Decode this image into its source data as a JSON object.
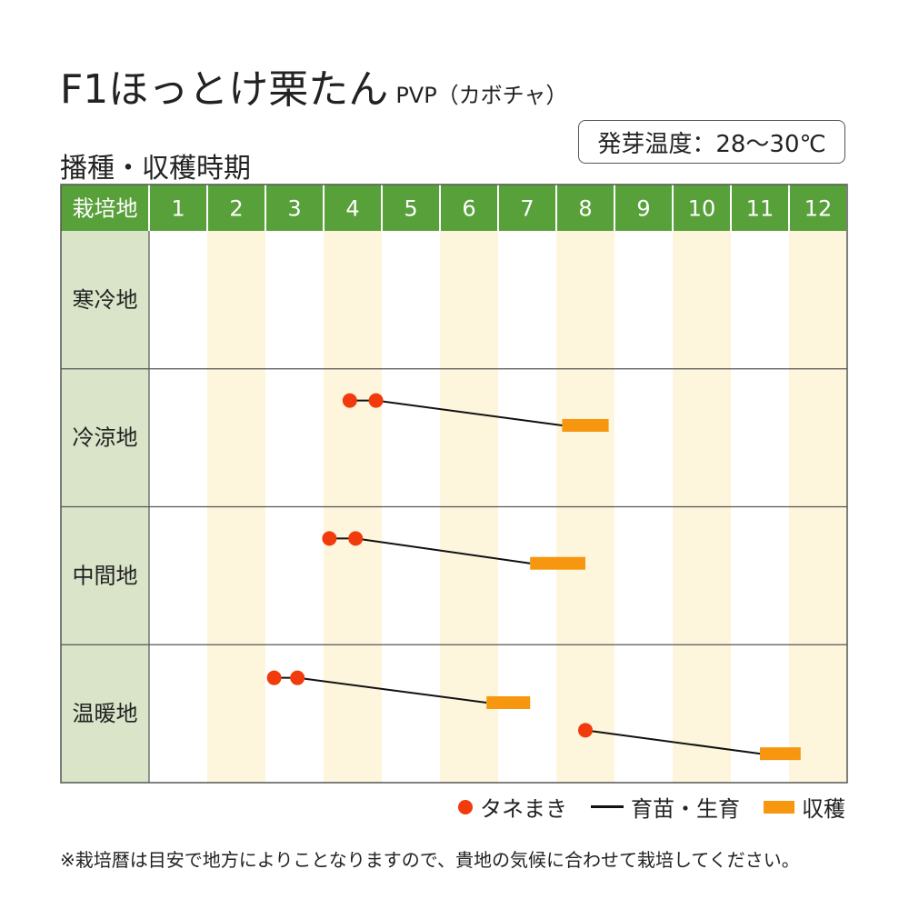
{
  "title": {
    "main": "F1ほっとけ栗たん",
    "sub": "PVP（カボチャ）"
  },
  "temperature_note": "発芽温度：28〜30℃",
  "section_title": "播種・収穫時期",
  "legend": {
    "sowing": "タネまき",
    "growing": "育苗・生育",
    "harvest": "収穫"
  },
  "footnote": "※栽培暦は目安で地方によりことなりますので、貴地の気候に合わせて栽培してください。",
  "colors": {
    "header_green": "#58a03a",
    "region_cell": "#d9e4c8",
    "stripe": "#fdf5dc",
    "sowing": "#f13b0c",
    "harvest": "#f7960f",
    "line": "#111111"
  },
  "chart_data": {
    "type": "gantt",
    "header_label": "栽培地",
    "months": [
      "1",
      "2",
      "3",
      "4",
      "5",
      "6",
      "7",
      "8",
      "9",
      "10",
      "11",
      "12"
    ],
    "regions": [
      {
        "name": "寒冷地",
        "schedules": []
      },
      {
        "name": "冷涼地",
        "schedules": [
          {
            "sowing": [
              4.45,
              4.9
            ],
            "harvest": [
              8.1,
              8.9
            ]
          }
        ]
      },
      {
        "name": "中間地",
        "schedules": [
          {
            "sowing": [
              4.1,
              4.55
            ],
            "harvest": [
              7.55,
              8.5
            ]
          }
        ]
      },
      {
        "name": "温暖地",
        "schedules": [
          {
            "sowing": [
              3.15,
              3.55
            ],
            "harvest": [
              6.8,
              7.55
            ]
          },
          {
            "sowing": [
              8.5
            ],
            "harvest": [
              11.5,
              12.2
            ]
          }
        ]
      }
    ]
  }
}
